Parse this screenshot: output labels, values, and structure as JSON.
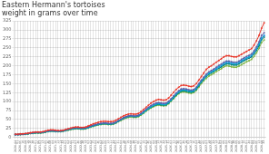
{
  "chart_data": {
    "type": "line",
    "title": "Eastern Hermann's tortoises\nweight in grams over time",
    "categories": [
      "2020-04\n01",
      null,
      "2020-06\n10",
      null,
      "2020-08\n19",
      null,
      "2020-10\n28",
      null,
      "2021-01\n06",
      null,
      "2021-03\n17",
      null,
      "2021-05\n26",
      null,
      "2021-08\n04",
      null,
      "2021-10\n13",
      null,
      "2021-12\n22",
      null,
      "2022-03\n02",
      null,
      "2022-05\n11",
      null,
      "2022-07\n20",
      null,
      "2022-09\n28",
      null,
      "2022-12\n07",
      null,
      "2023-02\n15",
      null,
      "2023-04\n26",
      null,
      "2023-07\n05",
      null,
      "2023-09\n13",
      null,
      "2023-11\n22",
      null,
      "2024-01\n31",
      null,
      "2024-04\n10",
      null,
      "2024-06\n19",
      null,
      "2024-08\n28",
      null,
      "2024-11\n06",
      null,
      "2025-01\n15",
      null,
      "2025-03\n26",
      null,
      "2025-06\n04",
      null,
      "2025-08\n13",
      null,
      "2025-10\n22",
      null,
      "2025-12\n31",
      null,
      "2026-03\n11",
      null,
      "2026-05\n20",
      null,
      "2026-07\n29",
      null,
      "2026-10\n07",
      null,
      "2026-12\n16",
      null,
      "2027-02\n24",
      null,
      "2027-05\n05",
      null,
      "2027-07\n14",
      null,
      "2027-09\n22",
      null,
      "2027-12\n01",
      null,
      "2028-02\n09",
      null,
      "2028-04\n19",
      null,
      "2028-06\n28",
      null,
      "2028-09\n06",
      null,
      "2028-11\n15",
      null,
      "2029-01\n24",
      null,
      "2029-04\n04",
      null,
      "2029-06\n13",
      null,
      "2029-08\n22",
      null
    ],
    "series": [
      {
        "color": "#e8362a",
        "marker": "square",
        "values": [
          9,
          9,
          10,
          10,
          11,
          12,
          13,
          14,
          15,
          15,
          15,
          16,
          18,
          20,
          21,
          21,
          20,
          19,
          19,
          20,
          22,
          24,
          26,
          28,
          29,
          29,
          28,
          28,
          29,
          32,
          35,
          38,
          40,
          42,
          44,
          45,
          45,
          44,
          44,
          45,
          48,
          52,
          56,
          60,
          63,
          65,
          66,
          65,
          65,
          67,
          72,
          78,
          84,
          90,
          96,
          100,
          104,
          106,
          105,
          104,
          105,
          110,
          118,
          126,
          134,
          140,
          145,
          146,
          145,
          143,
          142,
          144,
          150,
          160,
          170,
          180,
          190,
          196,
          200,
          205,
          210,
          215,
          220,
          225,
          228,
          228,
          226,
          225,
          225,
          228,
          232,
          236,
          240,
          244,
          248,
          258,
          270,
          285,
          305,
          320
        ]
      },
      {
        "color": "#5b5ea6",
        "marker": "square",
        "values": [
          8,
          8,
          9,
          9,
          10,
          11,
          12,
          13,
          14,
          14,
          14,
          15,
          17,
          18,
          19,
          19,
          18,
          18,
          18,
          19,
          21,
          23,
          25,
          26,
          27,
          27,
          26,
          26,
          27,
          29,
          32,
          34,
          36,
          38,
          39,
          40,
          40,
          39,
          39,
          40,
          43,
          47,
          51,
          55,
          58,
          60,
          61,
          60,
          60,
          62,
          67,
          73,
          79,
          84,
          89,
          93,
          96,
          97,
          96,
          95,
          96,
          101,
          108,
          116,
          124,
          130,
          135,
          136,
          135,
          133,
          132,
          134,
          140,
          150,
          160,
          168,
          177,
          183,
          187,
          191,
          196,
          201,
          205,
          210,
          213,
          213,
          211,
          210,
          210,
          213,
          218,
          222,
          226,
          229,
          233,
          242,
          253,
          267,
          285,
          292
        ]
      },
      {
        "color": "#00aedb",
        "marker": "square",
        "values": [
          8,
          8,
          9,
          9,
          10,
          11,
          12,
          12,
          13,
          13,
          13,
          14,
          16,
          17,
          18,
          18,
          17,
          17,
          17,
          18,
          20,
          22,
          24,
          25,
          26,
          26,
          25,
          25,
          26,
          28,
          31,
          33,
          35,
          37,
          38,
          39,
          39,
          38,
          38,
          39,
          42,
          46,
          50,
          54,
          57,
          59,
          60,
          59,
          59,
          61,
          65,
          70,
          76,
          81,
          86,
          90,
          93,
          94,
          93,
          92,
          93,
          98,
          105,
          113,
          121,
          127,
          132,
          133,
          132,
          130,
          129,
          131,
          137,
          147,
          157,
          165,
          174,
          179,
          183,
          187,
          192,
          197,
          201,
          206,
          209,
          209,
          207,
          206,
          206,
          209,
          214,
          218,
          222,
          225,
          229,
          238,
          248,
          261,
          278,
          285
        ]
      },
      {
        "color": "#00897b",
        "marker": "square",
        "values": [
          8,
          8,
          8,
          9,
          9,
          10,
          11,
          12,
          13,
          13,
          13,
          14,
          15,
          17,
          18,
          18,
          17,
          17,
          17,
          18,
          19,
          21,
          23,
          24,
          25,
          25,
          24,
          24,
          25,
          27,
          30,
          32,
          34,
          36,
          37,
          38,
          38,
          37,
          37,
          38,
          41,
          45,
          49,
          53,
          56,
          58,
          59,
          58,
          58,
          60,
          64,
          69,
          75,
          80,
          84,
          88,
          91,
          92,
          91,
          90,
          91,
          96,
          103,
          110,
          118,
          124,
          129,
          130,
          129,
          127,
          126,
          128,
          134,
          144,
          154,
          162,
          170,
          176,
          180,
          184,
          189,
          193,
          197,
          202,
          205,
          205,
          203,
          202,
          202,
          205,
          210,
          214,
          218,
          221,
          225,
          233,
          243,
          256,
          273,
          280
        ]
      },
      {
        "color": "#7cb342",
        "marker": "square",
        "values": [
          8,
          8,
          8,
          9,
          9,
          10,
          11,
          11,
          12,
          12,
          12,
          13,
          15,
          16,
          17,
          17,
          16,
          16,
          16,
          17,
          19,
          20,
          22,
          23,
          24,
          24,
          23,
          23,
          24,
          26,
          29,
          31,
          33,
          35,
          36,
          37,
          37,
          36,
          36,
          37,
          40,
          44,
          47,
          51,
          54,
          56,
          57,
          56,
          56,
          58,
          62,
          67,
          73,
          78,
          82,
          86,
          89,
          90,
          89,
          88,
          89,
          94,
          101,
          108,
          116,
          122,
          126,
          127,
          126,
          124,
          123,
          125,
          131,
          140,
          150,
          158,
          165,
          171,
          175,
          179,
          184,
          188,
          192,
          197,
          200,
          199,
          197,
          196,
          196,
          199,
          203,
          207,
          211,
          214,
          218,
          226,
          236,
          249,
          265,
          272
        ]
      },
      {
        "color": "#e040fb",
        "marker": "square",
        "values": [
          8,
          8,
          9,
          9,
          10,
          11,
          12,
          13,
          14,
          14,
          14,
          15,
          16,
          18,
          19,
          19,
          18,
          18,
          18,
          19,
          21,
          22,
          24,
          25,
          26,
          26,
          25,
          25,
          26,
          28,
          31,
          33,
          35,
          37,
          38,
          39,
          39,
          38,
          38,
          39,
          42,
          46,
          50,
          54,
          57,
          59,
          60,
          59,
          59,
          61,
          65,
          71,
          77,
          82,
          87,
          91,
          94,
          95,
          94,
          93,
          94,
          99,
          106,
          114,
          122,
          128,
          132,
          133,
          132,
          130,
          129,
          131,
          137,
          147,
          157,
          165,
          173,
          179,
          183,
          187,
          191,
          196,
          200,
          205,
          208,
          208,
          206,
          205,
          205,
          208,
          212,
          216,
          220,
          223,
          227,
          236,
          247,
          260,
          277,
          284
        ]
      }
    ],
    "ylim": [
      0,
      325
    ],
    "yticks": [
      0,
      25,
      50,
      75,
      100,
      125,
      150,
      175,
      200,
      225,
      250,
      275,
      300,
      325
    ],
    "grid": true
  }
}
